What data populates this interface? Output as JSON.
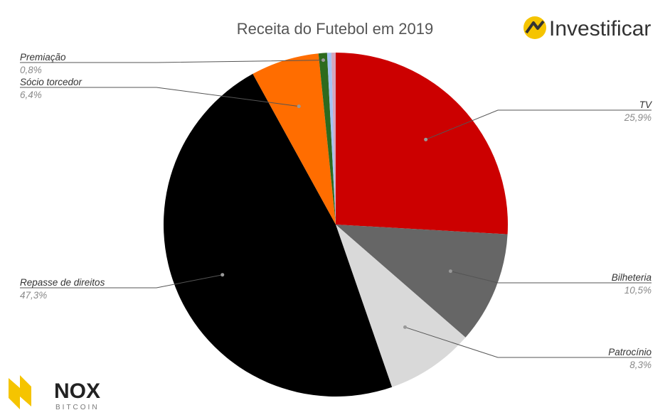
{
  "chart_data": {
    "type": "pie",
    "title": "Receita do Futebol em 2019",
    "slices": [
      {
        "label": "TV",
        "value_label": "25,9%",
        "value": 25.9,
        "color": "#cc0000"
      },
      {
        "label": "Bilheteria",
        "value_label": "10,5%",
        "value": 10.5,
        "color": "#666666"
      },
      {
        "label": "Patrocínio",
        "value_label": "8,3%",
        "value": 8.3,
        "color": "#d9d9d9"
      },
      {
        "label": "Repasse de direitos",
        "value_label": "47,3%",
        "value": 47.3,
        "color": "#000000"
      },
      {
        "label": "Sócio torcedor",
        "value_label": "6,4%",
        "value": 6.4,
        "color": "#ff6d00"
      },
      {
        "label": "Premiação",
        "value_label": "0,8%",
        "value": 0.8,
        "color": "#2d6a1e"
      },
      {
        "label": "",
        "value_label": "",
        "value": 0.4,
        "color": "#a4c2f4"
      },
      {
        "label": "",
        "value_label": "",
        "value": 0.4,
        "color": "#d5a6bd"
      }
    ]
  },
  "branding": {
    "top_right": {
      "text": "Investificar",
      "icon": "investificar-logo-icon",
      "accent": "#f5c400"
    },
    "bottom_left": {
      "text": "NOX",
      "subtext": "BITCOIN",
      "icon": "nox-logo-icon",
      "accent": "#f5c400"
    }
  }
}
